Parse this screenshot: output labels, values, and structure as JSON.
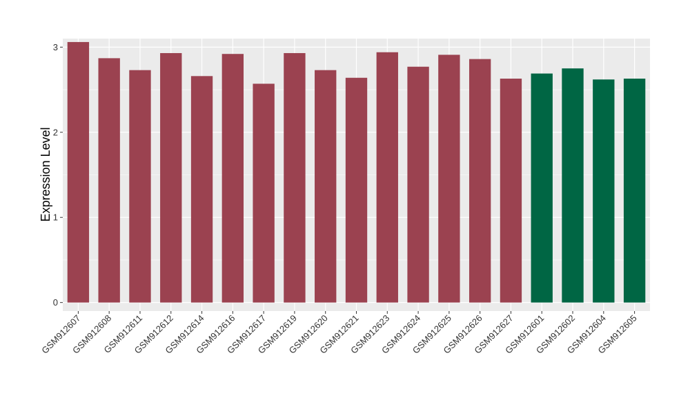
{
  "chart_data": {
    "type": "bar",
    "title": "",
    "xlabel": "",
    "ylabel": "Expression Level",
    "ylim": [
      -0.1,
      3.1
    ],
    "yticks": [
      0,
      1,
      2,
      3
    ],
    "grid": true,
    "legend": "none",
    "background": "#EBEBEB",
    "grid_color": "#FFFFFF",
    "categories": [
      "GSM912607",
      "GSM912608",
      "GSM912611",
      "GSM912612",
      "GSM912614",
      "GSM912616",
      "GSM912617",
      "GSM912619",
      "GSM912620",
      "GSM912621",
      "GSM912623",
      "GSM912624",
      "GSM912625",
      "GSM912626",
      "GSM912627",
      "GSM912601",
      "GSM912602",
      "GSM912604",
      "GSM912605"
    ],
    "values": [
      3.06,
      2.87,
      2.73,
      2.93,
      2.66,
      2.92,
      2.57,
      2.93,
      2.73,
      2.64,
      2.94,
      2.77,
      2.91,
      2.86,
      2.63,
      2.69,
      2.75,
      2.62,
      2.63
    ],
    "colors": [
      "#9B4250",
      "#9B4250",
      "#9B4250",
      "#9B4250",
      "#9B4250",
      "#9B4250",
      "#9B4250",
      "#9B4250",
      "#9B4250",
      "#9B4250",
      "#9B4250",
      "#9B4250",
      "#9B4250",
      "#9B4250",
      "#9B4250",
      "#006644",
      "#006644",
      "#006644",
      "#006644"
    ]
  }
}
